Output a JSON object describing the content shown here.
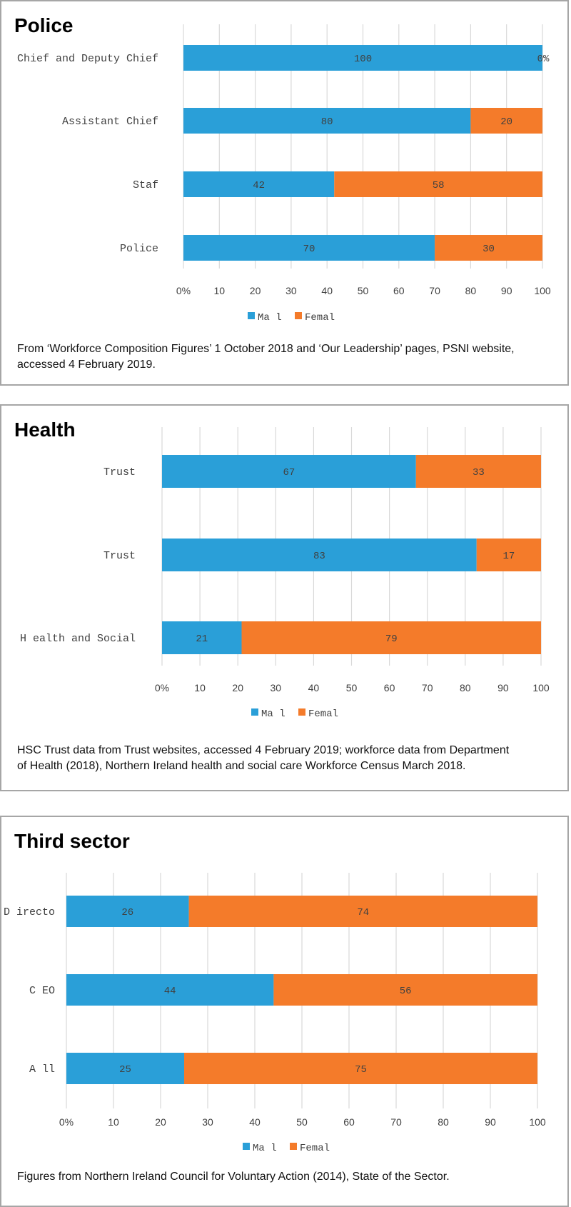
{
  "colors": {
    "male": "#2a9fd8",
    "female": "#f47b2a",
    "grid": "#d9d9d9",
    "text": "#404040"
  },
  "panels": [
    {
      "title": "Police",
      "caption": "From ‘Workforce Composition Figures’ 1 October 2018 and ‘Our Leadership’ pages, PSNI website, accessed 4 February 2019."
    },
    {
      "title": "Health",
      "caption": "HSC Trust data from Trust websites, accessed 4 February 2019; workforce data from Department of Health (2018), Northern Ireland health and social care Workforce Census March 2018."
    },
    {
      "title": "Third sector",
      "caption": "Figures from Northern Ireland Council for Voluntary Action (2014), State of the Sector."
    }
  ],
  "chart_data": [
    {
      "type": "bar",
      "orientation": "horizontal",
      "stacked": true,
      "title": "Police",
      "categories": [
        "Chief and Deputy Chief",
        "Assistant Chief",
        "Staf",
        "Police"
      ],
      "series": [
        {
          "name": "Ma l",
          "values": [
            100,
            80,
            42,
            70
          ],
          "labels": [
            "100",
            "80",
            "42",
            "70"
          ]
        },
        {
          "name": "Femal",
          "values": [
            0,
            20,
            58,
            30
          ],
          "labels": [
            "0%",
            "20",
            "58",
            "30"
          ]
        }
      ],
      "xlim": [
        0,
        100
      ],
      "ticks": [
        "0%",
        "10",
        "20",
        "30",
        "40",
        "50",
        "60",
        "70",
        "80",
        "90",
        "100"
      ],
      "grid": true,
      "legend": "bottom"
    },
    {
      "type": "bar",
      "orientation": "horizontal",
      "stacked": true,
      "title": "Health",
      "categories": [
        "Trust",
        "Trust",
        "H ealth and Social"
      ],
      "series": [
        {
          "name": "Ma l",
          "values": [
            67,
            83,
            21
          ],
          "labels": [
            "67",
            "83",
            "21"
          ]
        },
        {
          "name": "Femal",
          "values": [
            33,
            17,
            79
          ],
          "labels": [
            "33",
            "17",
            "79"
          ]
        }
      ],
      "xlim": [
        0,
        100
      ],
      "ticks": [
        "0%",
        "10",
        "20",
        "30",
        "40",
        "50",
        "60",
        "70",
        "80",
        "90",
        "100"
      ],
      "grid": true,
      "legend": "bottom"
    },
    {
      "type": "bar",
      "orientation": "horizontal",
      "stacked": true,
      "title": "Third sector",
      "categories": [
        "D irecto",
        "C EO",
        "A ll"
      ],
      "series": [
        {
          "name": "Ma l",
          "values": [
            26,
            44,
            25
          ],
          "labels": [
            "26",
            "44",
            "25"
          ]
        },
        {
          "name": "Femal",
          "values": [
            74,
            56,
            75
          ],
          "labels": [
            "74",
            "56",
            "75"
          ]
        }
      ],
      "xlim": [
        0,
        100
      ],
      "ticks": [
        "0%",
        "10",
        "20",
        "30",
        "40",
        "50",
        "60",
        "70",
        "80",
        "90",
        "100"
      ],
      "grid": true,
      "legend": "bottom"
    }
  ]
}
